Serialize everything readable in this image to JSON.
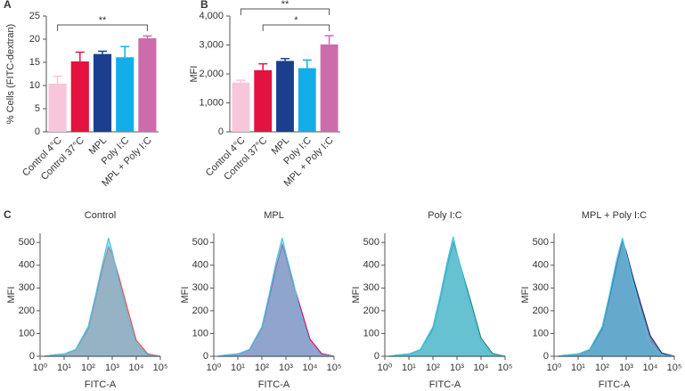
{
  "chart_data": [
    {
      "type": "bar",
      "panel": "A",
      "ylabel": "% Cells (FITC-dextran)",
      "categories": [
        "Control 4°C",
        "Control 37°C",
        "MPL",
        "Poly I:C",
        "MPL + Poly I:C"
      ],
      "values": [
        10.4,
        15.2,
        16.8,
        16.1,
        20.2
      ],
      "errors": [
        1.6,
        2.0,
        0.6,
        2.3,
        0.5
      ],
      "colors": [
        "#f7c6da",
        "#e3123f",
        "#1b3f8e",
        "#12aeea",
        "#cc6cab"
      ],
      "ylim": [
        0,
        25
      ],
      "yticks": [
        0,
        5,
        10,
        15,
        20,
        25
      ],
      "significance": [
        {
          "text": "**",
          "categories": [
            "Control 4°C",
            "MPL + Poly I:C"
          ]
        }
      ]
    },
    {
      "type": "bar",
      "panel": "B",
      "ylabel": "MFI",
      "categories": [
        "Control 4°C",
        "Control 37°C",
        "MPL",
        "Poly I:C",
        "MPL + Poly I:C"
      ],
      "values": [
        1700,
        2130,
        2450,
        2200,
        3020
      ],
      "errors": [
        80,
        220,
        80,
        280,
        300
      ],
      "colors": [
        "#f7c6da",
        "#e3123f",
        "#1b3f8e",
        "#12aeea",
        "#cc6cab"
      ],
      "ylim": [
        0,
        4000
      ],
      "yticks": [
        0,
        {
          "value": 1000,
          "label": "1,000"
        },
        {
          "value": 2000,
          "label": "2,000"
        },
        {
          "value": 3000,
          "label": "3,000"
        },
        {
          "value": 4000,
          "label": "4,000"
        }
      ],
      "significance": [
        {
          "text": "**",
          "categories": [
            "Control 4°C",
            "MPL + Poly I:C"
          ]
        },
        {
          "text": "*",
          "categories": [
            "Control 37°C",
            "MPL + Poly I:C"
          ]
        }
      ]
    },
    {
      "type": "histogram",
      "panel": "C",
      "title": "Control",
      "ylabel": "MFI",
      "xlabel": "FITC-A",
      "xscale": "log",
      "x": [
        1.5,
        3,
        10,
        30,
        100,
        200,
        400,
        700,
        1000,
        2000,
        4000,
        10000,
        30000,
        100000
      ],
      "series": [
        {
          "color": "#e0505a",
          "values": [
            0,
            5,
            10,
            28,
            120,
            250,
            390,
            480,
            450,
            340,
            220,
            70,
            10,
            0
          ]
        },
        {
          "color": "#4fc3e0",
          "values": [
            0,
            5,
            10,
            30,
            130,
            265,
            410,
            520,
            460,
            320,
            190,
            55,
            6,
            0
          ]
        }
      ],
      "xlim": [
        1,
        100000
      ],
      "ylim": [
        0,
        540
      ],
      "xticks": [
        {
          "value": 1,
          "label": "10⁰"
        },
        {
          "value": 10,
          "label": "10¹"
        },
        {
          "value": 100,
          "label": "10²"
        },
        {
          "value": 1000,
          "label": "10³"
        },
        {
          "value": 10000,
          "label": "10⁴"
        },
        {
          "value": 100000,
          "label": "10⁵"
        }
      ],
      "yticks": [
        0,
        100,
        200,
        300,
        400,
        500
      ]
    },
    {
      "type": "histogram",
      "title": "MPL",
      "ylabel": "MFI",
      "xlabel": "FITC-A",
      "xscale": "log",
      "x": [
        1.5,
        3,
        10,
        30,
        100,
        200,
        400,
        700,
        1000,
        2000,
        4000,
        10000,
        30000,
        100000
      ],
      "series": [
        {
          "color": "#c8187a",
          "values": [
            0,
            5,
            10,
            28,
            125,
            255,
            395,
            490,
            440,
            320,
            215,
            75,
            12,
            0
          ]
        },
        {
          "color": "#4fc3e0",
          "values": [
            0,
            5,
            10,
            30,
            130,
            270,
            420,
            520,
            450,
            330,
            190,
            55,
            6,
            0
          ]
        }
      ],
      "xlim": [
        1,
        100000
      ],
      "ylim": [
        0,
        540
      ],
      "xticks": [
        {
          "value": 1,
          "label": "10⁰"
        },
        {
          "value": 10,
          "label": "10¹"
        },
        {
          "value": 100,
          "label": "10²"
        },
        {
          "value": 1000,
          "label": "10³"
        },
        {
          "value": 10000,
          "label": "10⁴"
        },
        {
          "value": 100000,
          "label": "10⁵"
        }
      ],
      "yticks": [
        0,
        100,
        200,
        300,
        400,
        500
      ]
    },
    {
      "type": "histogram",
      "title": "Poly I:C",
      "ylabel": "MFI",
      "xlabel": "FITC-A",
      "xscale": "log",
      "x": [
        1.5,
        3,
        10,
        30,
        100,
        200,
        400,
        700,
        1000,
        2000,
        4000,
        10000,
        30000,
        100000
      ],
      "series": [
        {
          "color": "#1f8a8a",
          "values": [
            0,
            5,
            10,
            28,
            120,
            250,
            400,
            500,
            450,
            340,
            230,
            80,
            12,
            0
          ]
        },
        {
          "color": "#4fc3e0",
          "values": [
            0,
            5,
            10,
            30,
            130,
            265,
            420,
            525,
            455,
            330,
            200,
            60,
            6,
            0
          ]
        }
      ],
      "xlim": [
        1,
        100000
      ],
      "ylim": [
        0,
        540
      ],
      "xticks": [
        {
          "value": 1,
          "label": "10⁰"
        },
        {
          "value": 10,
          "label": "10¹"
        },
        {
          "value": 100,
          "label": "10²"
        },
        {
          "value": 1000,
          "label": "10³"
        },
        {
          "value": 10000,
          "label": "10⁴"
        },
        {
          "value": 100000,
          "label": "10⁵"
        }
      ],
      "yticks": [
        0,
        100,
        200,
        300,
        400,
        500
      ]
    },
    {
      "type": "histogram",
      "title": "MPL + Poly I:C",
      "ylabel": "MFI",
      "xlabel": "FITC-A",
      "xscale": "log",
      "x": [
        1.5,
        3,
        10,
        30,
        100,
        200,
        400,
        700,
        1000,
        2000,
        4000,
        10000,
        30000,
        100000
      ],
      "series": [
        {
          "color": "#1b2f7a",
          "values": [
            0,
            5,
            10,
            28,
            120,
            255,
            400,
            510,
            460,
            340,
            230,
            90,
            14,
            0
          ]
        },
        {
          "color": "#4fc3e0",
          "values": [
            0,
            5,
            10,
            30,
            130,
            270,
            425,
            520,
            450,
            320,
            190,
            55,
            6,
            0
          ]
        }
      ],
      "xlim": [
        1,
        100000
      ],
      "ylim": [
        0,
        540
      ],
      "xticks": [
        {
          "value": 1,
          "label": "10⁰"
        },
        {
          "value": 10,
          "label": "10¹"
        },
        {
          "value": 100,
          "label": "10²"
        },
        {
          "value": 1000,
          "label": "10³"
        },
        {
          "value": 10000,
          "label": "10⁴"
        },
        {
          "value": 100000,
          "label": "10⁵"
        }
      ],
      "yticks": [
        0,
        100,
        200,
        300,
        400,
        500
      ]
    }
  ]
}
